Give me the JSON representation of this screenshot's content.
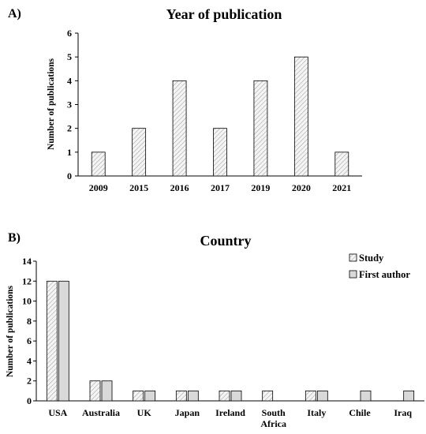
{
  "chart_data": [
    {
      "type": "bar",
      "panel_label": "A)",
      "title": "Year of publication",
      "xlabel": "",
      "ylabel": "Number of publications",
      "ylim": [
        0,
        6
      ],
      "yticks": [
        0,
        1,
        2,
        3,
        4,
        5,
        6
      ],
      "categories": [
        "2009",
        "2015",
        "2016",
        "2017",
        "2019",
        "2020",
        "2021"
      ],
      "values": [
        1,
        2,
        4,
        2,
        4,
        5,
        1
      ],
      "bar_fill": "hatched-light-gray",
      "grid": false,
      "legend": null
    },
    {
      "type": "bar",
      "panel_label": "B)",
      "title": "Country",
      "xlabel": "",
      "ylabel": "Number of publications",
      "ylim": [
        0,
        14
      ],
      "yticks": [
        0,
        2,
        4,
        6,
        8,
        10,
        12,
        14
      ],
      "categories": [
        "USA",
        "Australia",
        "UK",
        "Japan",
        "Ireland",
        "South Africa",
        "Italy",
        "Chile",
        "Iraq"
      ],
      "series": [
        {
          "name": "Study",
          "values": [
            12,
            2,
            1,
            1,
            1,
            1,
            1,
            0,
            0
          ],
          "fill": "hatched-light-gray"
        },
        {
          "name": "First author",
          "values": [
            12,
            2,
            1,
            1,
            1,
            0,
            1,
            1,
            1
          ],
          "fill": "light-gray"
        }
      ],
      "grid": false,
      "legend": "top-right"
    }
  ]
}
